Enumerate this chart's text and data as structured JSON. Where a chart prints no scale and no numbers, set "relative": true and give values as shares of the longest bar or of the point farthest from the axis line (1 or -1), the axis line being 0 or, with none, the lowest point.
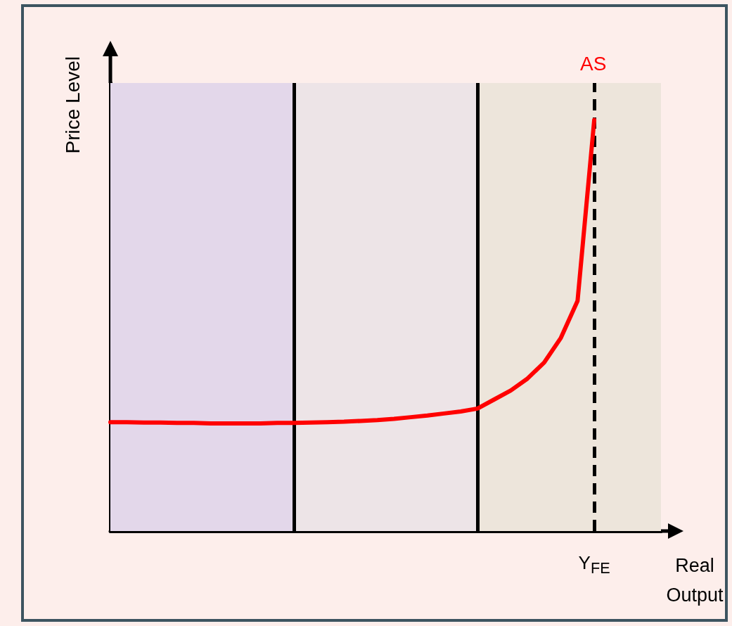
{
  "chart_data": {
    "type": "line",
    "relative": true,
    "xlabel": "Real Output",
    "ylabel": "Price Level",
    "grid": false,
    "marker": "none",
    "line_style": "solid",
    "categories": [
      null,
      null,
      null,
      null,
      null,
      null,
      null,
      null,
      null,
      null,
      null,
      null,
      null,
      null,
      null,
      null,
      null,
      null,
      null,
      null,
      null,
      null,
      null,
      null,
      null,
      null,
      null,
      null,
      null,
      null,
      null,
      null,
      null,
      null
    ],
    "annotations": [
      "Y$_{FE}$"
    ],
    "series": [
      {
        "name": "AS",
        "color": "#ff0000",
        "values": [
          0.265,
          0.265,
          0.264,
          0.264,
          0.263,
          0.263,
          0.262,
          0.262,
          0.262,
          0.262,
          0.263,
          0.263,
          0.264,
          0.265,
          0.266,
          0.268,
          0.27,
          0.273,
          0.277,
          0.281,
          0.286,
          0.291,
          0.298,
          0.32,
          0.342,
          0.371,
          0.41,
          0.47,
          0.56,
          1,
          null,
          null,
          null,
          null
        ]
      }
    ],
    "legend": false
  }
}
